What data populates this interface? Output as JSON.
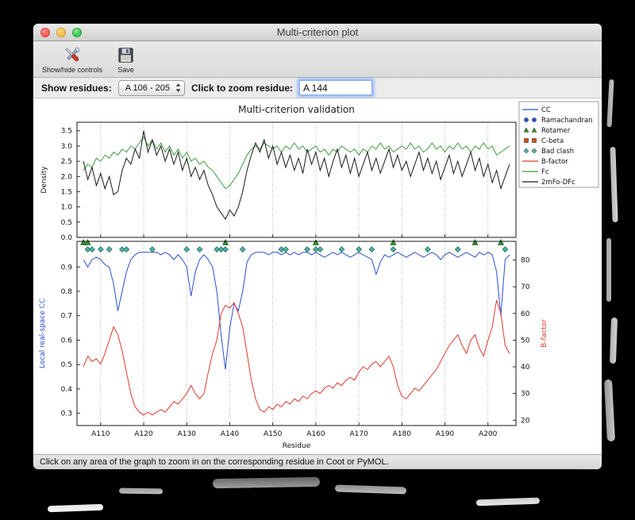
{
  "window": {
    "title": "Multi-criterion plot"
  },
  "toolbar": {
    "show_hide_label": "Show/hide controls",
    "save_label": "Save"
  },
  "controls": {
    "show_residues_label": "Show residues:",
    "show_residues_value": "A 106 - 205",
    "zoom_residue_label": "Click to zoom residue:",
    "zoom_residue_value": "A 144"
  },
  "status_bar": {
    "text": "Click on any area of the graph to zoom in on the corresponding residue in Coot or PyMOL."
  },
  "chart_data": {
    "type": "line",
    "title": "Multi-criterion validation",
    "xlabel": "Residue",
    "x_start": 106,
    "x_end": 205,
    "xlim": [
      104.5,
      206.5
    ],
    "xticks": [
      110,
      120,
      130,
      140,
      150,
      160,
      170,
      180,
      190,
      200
    ],
    "xtick_labels": [
      "A110",
      "A120",
      "A130",
      "A140",
      "A150",
      "A160",
      "A170",
      "A180",
      "A190",
      "A200"
    ],
    "grid": true,
    "top_plot": {
      "ylabel": "Density",
      "ylim": [
        0,
        3.78
      ],
      "yticks": [
        0.0,
        0.5,
        1.0,
        1.5,
        2.0,
        2.5,
        3.0,
        3.5
      ],
      "series": [
        {
          "name": "Fc",
          "color": "#3f9b3f",
          "values": [
            2.2,
            2.4,
            2.3,
            2.6,
            2.5,
            2.7,
            2.6,
            2.8,
            2.7,
            2.9,
            2.8,
            3.0,
            2.9,
            3.1,
            3.3,
            3.0,
            3.2,
            2.9,
            3.1,
            2.8,
            3.0,
            2.7,
            2.9,
            2.6,
            2.8,
            2.5,
            2.6,
            2.4,
            2.5,
            2.3,
            2.2,
            2.0,
            1.8,
            1.6,
            1.7,
            1.9,
            2.1,
            2.4,
            2.7,
            2.9,
            3.0,
            2.9,
            3.1,
            3.0,
            2.9,
            3.0,
            2.8,
            3.0,
            2.9,
            3.1,
            2.9,
            3.0,
            2.8,
            2.9,
            3.0,
            2.8,
            2.9,
            2.7,
            2.9,
            2.8,
            3.0,
            2.9,
            2.8,
            2.9,
            2.7,
            2.9,
            2.8,
            3.0,
            2.9,
            3.1,
            2.9,
            3.0,
            2.8,
            2.9,
            3.0,
            2.9,
            3.1,
            2.9,
            3.0,
            2.8,
            2.9,
            3.1,
            2.9,
            3.0,
            2.8,
            3.0,
            2.9,
            3.1,
            2.9,
            3.0,
            2.8,
            3.0,
            2.9,
            3.1,
            2.9,
            3.0,
            2.7,
            2.8,
            2.9,
            3.0
          ]
        },
        {
          "name": "2mFo-DFc",
          "color": "#1a1a1a",
          "values": [
            2.5,
            1.9,
            2.3,
            1.7,
            2.1,
            1.6,
            2.0,
            1.4,
            1.5,
            2.2,
            2.6,
            2.4,
            2.9,
            2.6,
            3.5,
            2.8,
            3.2,
            2.7,
            3.0,
            2.5,
            2.9,
            2.4,
            2.8,
            2.2,
            2.6,
            2.0,
            2.3,
            1.9,
            2.2,
            1.7,
            1.4,
            1.0,
            0.8,
            0.6,
            0.9,
            0.7,
            1.0,
            1.5,
            2.2,
            2.7,
            3.1,
            2.8,
            3.2,
            2.6,
            3.0,
            2.4,
            2.8,
            2.3,
            2.7,
            2.2,
            2.6,
            2.1,
            2.9,
            2.4,
            2.8,
            2.2,
            2.6,
            2.0,
            2.5,
            2.9,
            2.3,
            2.7,
            2.1,
            2.6,
            2.0,
            2.4,
            2.8,
            2.2,
            2.6,
            2.1,
            2.5,
            2.9,
            2.3,
            2.7,
            2.2,
            2.5,
            2.0,
            2.4,
            2.8,
            2.2,
            2.6,
            2.1,
            2.5,
            1.9,
            2.3,
            2.7,
            2.1,
            2.5,
            2.0,
            2.4,
            2.8,
            2.2,
            2.6,
            2.0,
            2.4,
            1.8,
            2.2,
            1.6,
            2.0,
            2.4
          ]
        }
      ]
    },
    "bottom_plot": {
      "left_ylabel": "Local real-space CC",
      "left_color": "#2b4fce",
      "cc_ylim": [
        0.25,
        1.005
      ],
      "cc_yticks": [
        0.3,
        0.4,
        0.5,
        0.6,
        0.7,
        0.8,
        0.9
      ],
      "right_ylabel": "B-factor",
      "right_color": "#e0392e",
      "bfactor_ylim": [
        18,
        87
      ],
      "bfactor_yticks": [
        20,
        30,
        40,
        50,
        60,
        70,
        80
      ],
      "series": [
        {
          "name": "CC",
          "axis": "left",
          "color": "#2b4fce",
          "values": [
            0.93,
            0.9,
            0.93,
            0.94,
            0.93,
            0.91,
            0.9,
            0.83,
            0.72,
            0.8,
            0.88,
            0.93,
            0.95,
            0.96,
            0.96,
            0.96,
            0.96,
            0.96,
            0.95,
            0.96,
            0.95,
            0.93,
            0.95,
            0.93,
            0.9,
            0.78,
            0.88,
            0.93,
            0.95,
            0.93,
            0.9,
            0.8,
            0.62,
            0.48,
            0.65,
            0.75,
            0.72,
            0.8,
            0.92,
            0.95,
            0.96,
            0.96,
            0.96,
            0.95,
            0.96,
            0.96,
            0.95,
            0.96,
            0.95,
            0.96,
            0.95,
            0.96,
            0.96,
            0.95,
            0.96,
            0.95,
            0.94,
            0.95,
            0.96,
            0.95,
            0.96,
            0.95,
            0.94,
            0.95,
            0.96,
            0.95,
            0.94,
            0.93,
            0.87,
            0.92,
            0.95,
            0.94,
            0.95,
            0.96,
            0.95,
            0.94,
            0.95,
            0.96,
            0.95,
            0.94,
            0.95,
            0.96,
            0.95,
            0.93,
            0.95,
            0.96,
            0.95,
            0.94,
            0.95,
            0.96,
            0.95,
            0.94,
            0.96,
            0.95,
            0.96,
            0.95,
            0.88,
            0.7,
            0.93,
            0.95
          ]
        },
        {
          "name": "B-factor",
          "axis": "right",
          "color": "#e0392e",
          "values": [
            40,
            44,
            42,
            43,
            41,
            45,
            50,
            55,
            52,
            46,
            38,
            30,
            25,
            23,
            22,
            23,
            22,
            23,
            24,
            23,
            25,
            27,
            26,
            28,
            30,
            33,
            30,
            28,
            30,
            38,
            45,
            50,
            60,
            63,
            62,
            64,
            60,
            55,
            45,
            35,
            28,
            24,
            23,
            25,
            24,
            26,
            25,
            27,
            26,
            28,
            27,
            29,
            28,
            30,
            31,
            30,
            32,
            33,
            32,
            34,
            33,
            35,
            36,
            35,
            38,
            40,
            39,
            41,
            42,
            40,
            42,
            44,
            40,
            33,
            29,
            28,
            30,
            32,
            31,
            33,
            35,
            37,
            39,
            42,
            45,
            48,
            50,
            52,
            48,
            45,
            50,
            52,
            47,
            44,
            50,
            55,
            65,
            60,
            48,
            45
          ]
        }
      ],
      "markers": [
        {
          "name": "Bad clash",
          "shape": "diamond",
          "color": "#4fb0a5",
          "edge": "#2a6e66",
          "y_cc": 0.972,
          "residues": [
            107,
            108,
            110,
            112,
            115,
            116,
            122,
            130,
            133,
            137,
            138,
            139,
            143,
            152,
            153,
            158,
            160,
            161,
            166,
            170,
            173,
            178,
            186,
            193,
            204
          ]
        },
        {
          "name": "Rotamer",
          "shape": "triangle",
          "color": "#2f8f2f",
          "edge": "#1c5c1c",
          "y_cc": 1.0,
          "residues": [
            106,
            107,
            139,
            160,
            178,
            197,
            203
          ]
        }
      ]
    },
    "legend": {
      "position": "top-right",
      "entries": [
        {
          "label": "CC",
          "type": "line",
          "color": "#2b4fce"
        },
        {
          "label": "Ramachandran",
          "type": "circle",
          "color": "#2b4fce"
        },
        {
          "label": "Rotamer",
          "type": "triangle",
          "color": "#2f8f2f"
        },
        {
          "label": "C-beta",
          "type": "square",
          "color": "#cc5522"
        },
        {
          "label": "Bad clash",
          "type": "diamond",
          "color": "#4fb0a5"
        },
        {
          "label": "B-factor",
          "type": "line",
          "color": "#e0392e"
        },
        {
          "label": "Fc",
          "type": "line",
          "color": "#3f9b3f"
        },
        {
          "label": "2mFo-DFc",
          "type": "line",
          "color": "#1a1a1a"
        }
      ]
    }
  }
}
